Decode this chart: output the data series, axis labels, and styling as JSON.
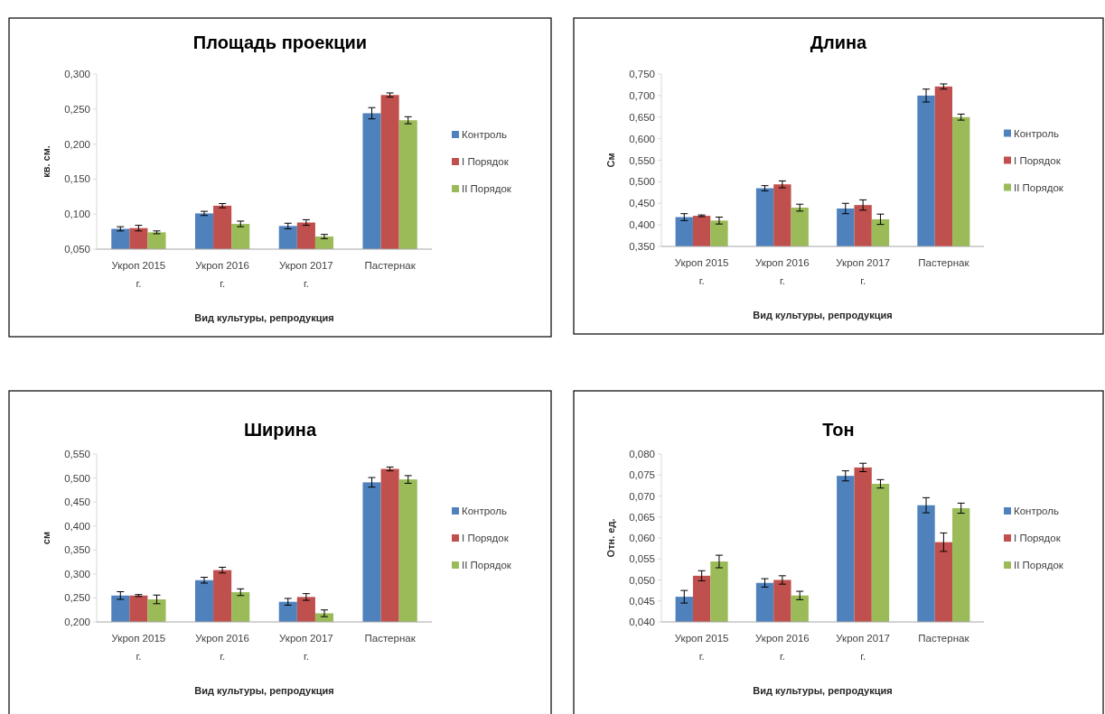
{
  "chart_data": [
    {
      "type": "bar",
      "title": "Площадь проекции",
      "xlabel": "Вид культуры, репродукция",
      "ylabel": "кв. см.",
      "categories": [
        "Укроп 2015 г.",
        "Укроп 2016 г.",
        "Укроп 2017 г.",
        "Пастернак"
      ],
      "series": [
        {
          "name": "Контроль",
          "color": "#4f81bd",
          "values": [
            0.079,
            0.101,
            0.083,
            0.244
          ],
          "errors": [
            0.003,
            0.003,
            0.004,
            0.008
          ]
        },
        {
          "name": "I Порядок",
          "color": "#c0504d",
          "values": [
            0.08,
            0.112,
            0.088,
            0.27
          ],
          "errors": [
            0.004,
            0.003,
            0.004,
            0.003
          ]
        },
        {
          "name": "II Порядок",
          "color": "#9bbb59",
          "values": [
            0.074,
            0.086,
            0.068,
            0.234
          ],
          "errors": [
            0.002,
            0.004,
            0.003,
            0.005
          ]
        }
      ],
      "ylim": [
        0.05,
        0.3
      ],
      "yticks": [
        {
          "value": 0.05,
          "label": "0,050"
        },
        {
          "value": 0.1,
          "label": "0,100"
        },
        {
          "value": 0.15,
          "label": "0,150"
        },
        {
          "value": 0.2,
          "label": "0,200"
        },
        {
          "value": 0.25,
          "label": "0,250"
        },
        {
          "value": 0.3,
          "label": "0,300"
        }
      ],
      "legend": "right",
      "grid": false
    },
    {
      "type": "bar",
      "title": "Длина",
      "xlabel": "Вид культуры, репродукция",
      "ylabel": "См",
      "categories": [
        "Укроп 2015 г.",
        "Укроп 2016 г.",
        "Укроп 2017 г.",
        "Пастернак"
      ],
      "series": [
        {
          "name": "Контроль",
          "color": "#4f81bd",
          "values": [
            0.418,
            0.485,
            0.438,
            0.7
          ],
          "errors": [
            0.008,
            0.006,
            0.012,
            0.015
          ]
        },
        {
          "name": "I Порядок",
          "color": "#c0504d",
          "values": [
            0.421,
            0.494,
            0.446,
            0.721
          ],
          "errors": [
            0.002,
            0.008,
            0.012,
            0.006
          ]
        },
        {
          "name": "II Порядок",
          "color": "#9bbb59",
          "values": [
            0.41,
            0.44,
            0.413,
            0.65
          ],
          "errors": [
            0.008,
            0.008,
            0.012,
            0.007
          ]
        }
      ],
      "ylim": [
        0.35,
        0.75
      ],
      "yticks": [
        {
          "value": 0.35,
          "label": "0,350"
        },
        {
          "value": 0.4,
          "label": "0,400"
        },
        {
          "value": 0.45,
          "label": "0,450"
        },
        {
          "value": 0.5,
          "label": "0,500"
        },
        {
          "value": 0.55,
          "label": "0,550"
        },
        {
          "value": 0.6,
          "label": "0,600"
        },
        {
          "value": 0.65,
          "label": "0,650"
        },
        {
          "value": 0.7,
          "label": "0,700"
        },
        {
          "value": 0.75,
          "label": "0,750"
        }
      ],
      "legend": "right",
      "grid": false
    },
    {
      "type": "bar",
      "title": "Ширина",
      "xlabel": "Вид культуры, репродукция",
      "ylabel": "см",
      "categories": [
        "Укроп 2015 г.",
        "Укроп 2016 г.",
        "Укроп 2017 г.",
        "Пастернак"
      ],
      "series": [
        {
          "name": "Контроль",
          "color": "#4f81bd",
          "values": [
            0.255,
            0.287,
            0.242,
            0.491
          ],
          "errors": [
            0.008,
            0.006,
            0.007,
            0.01
          ]
        },
        {
          "name": "I Порядок",
          "color": "#c0504d",
          "values": [
            0.255,
            0.308,
            0.252,
            0.519
          ],
          "errors": [
            0.002,
            0.006,
            0.007,
            0.004
          ]
        },
        {
          "name": "II Порядок",
          "color": "#9bbb59",
          "values": [
            0.247,
            0.262,
            0.218,
            0.497
          ],
          "errors": [
            0.009,
            0.007,
            0.007,
            0.008
          ]
        }
      ],
      "ylim": [
        0.2,
        0.55
      ],
      "yticks": [
        {
          "value": 0.2,
          "label": "0,200"
        },
        {
          "value": 0.25,
          "label": "0,250"
        },
        {
          "value": 0.3,
          "label": "0,300"
        },
        {
          "value": 0.35,
          "label": "0,350"
        },
        {
          "value": 0.4,
          "label": "0,400"
        },
        {
          "value": 0.45,
          "label": "0,450"
        },
        {
          "value": 0.5,
          "label": "0,500"
        },
        {
          "value": 0.55,
          "label": "0,550"
        }
      ],
      "legend": "right",
      "grid": false
    },
    {
      "type": "bar",
      "title": "Тон",
      "xlabel": "Вид культуры, репродукция",
      "ylabel": "Отн. ед.",
      "categories": [
        "Укроп 2015 г.",
        "Укроп 2016 г.",
        "Укроп 2017 г.",
        "Пастернак"
      ],
      "series": [
        {
          "name": "Контроль",
          "color": "#4f81bd",
          "values": [
            0.046,
            0.0493,
            0.0748,
            0.0678
          ],
          "errors": [
            0.0015,
            0.001,
            0.0012,
            0.0018
          ]
        },
        {
          "name": "I Порядок",
          "color": "#c0504d",
          "values": [
            0.051,
            0.05,
            0.0768,
            0.059
          ],
          "errors": [
            0.0012,
            0.001,
            0.001,
            0.0022
          ]
        },
        {
          "name": "II Порядок",
          "color": "#9bbb59",
          "values": [
            0.0544,
            0.0463,
            0.0729,
            0.0671
          ],
          "errors": [
            0.0015,
            0.001,
            0.001,
            0.0012
          ]
        }
      ],
      "ylim": [
        0.04,
        0.08
      ],
      "yticks": [
        {
          "value": 0.04,
          "label": "0,040"
        },
        {
          "value": 0.045,
          "label": "0,045"
        },
        {
          "value": 0.05,
          "label": "0,050"
        },
        {
          "value": 0.055,
          "label": "0,055"
        },
        {
          "value": 0.06,
          "label": "0,060"
        },
        {
          "value": 0.065,
          "label": "0,065"
        },
        {
          "value": 0.07,
          "label": "0,070"
        },
        {
          "value": 0.075,
          "label": "0,075"
        },
        {
          "value": 0.08,
          "label": "0,080"
        }
      ],
      "legend": "right",
      "grid": false
    }
  ]
}
